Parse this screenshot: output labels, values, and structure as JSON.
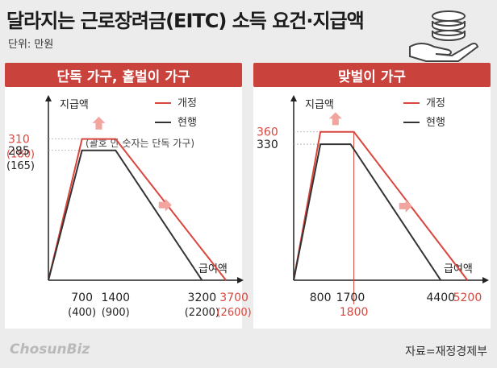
{
  "title": "달라지는 근로장려금(EITC) 소득 요건·지급액",
  "unit": "단위: 만원",
  "footer": {
    "logo": "ChosunBiz",
    "source": "자료=재정경제부"
  },
  "colors": {
    "revised": "#d9463e",
    "current": "#333333",
    "header_bg": "#c9423c",
    "arrow": "#f2a59f"
  },
  "chart_data": [
    {
      "type": "line",
      "title": "단독 가구, 홑벌이 가구",
      "ylabel": "지급액",
      "xlabel": "급여액",
      "note": "(괄호 안 숫자는 단독 가구)",
      "legend": [
        "개정",
        "현행"
      ],
      "legend_position": "top-right",
      "series": [
        {
          "name": "개정",
          "color": "#d9463e",
          "x": [
            0,
            700,
            1400,
            3700
          ],
          "y": [
            0,
            310,
            310,
            0
          ]
        },
        {
          "name": "현행",
          "color": "#333333",
          "x": [
            0,
            700,
            1400,
            3200
          ],
          "y": [
            0,
            285,
            285,
            0
          ]
        }
      ],
      "tick_labels_x": [
        {
          "text": "700",
          "sub": "(400)",
          "color": "#222222"
        },
        {
          "text": "1400",
          "sub": "(900)",
          "color": "#222222"
        },
        {
          "text": "3200",
          "sub": "(2200)",
          "color": "#222222"
        },
        {
          "text": "3700",
          "sub": "(2600)",
          "color": "#d9463e"
        }
      ],
      "tick_labels_y": [
        {
          "text": "310",
          "sub": "(180)",
          "color": "#d9463e"
        },
        {
          "text": "285",
          "sub": "(165)",
          "color": "#222222"
        }
      ]
    },
    {
      "type": "line",
      "title": "맞벌이 가구",
      "ylabel": "지급액",
      "xlabel": "급여액",
      "legend": [
        "개정",
        "현행"
      ],
      "legend_position": "top-right",
      "series": [
        {
          "name": "개정",
          "color": "#d9463e",
          "x": [
            0,
            800,
            1800,
            5200
          ],
          "y": [
            0,
            360,
            360,
            0
          ]
        },
        {
          "name": "현행",
          "color": "#333333",
          "x": [
            0,
            800,
            1700,
            4400
          ],
          "y": [
            0,
            330,
            330,
            0
          ]
        }
      ],
      "tick_labels_x": [
        {
          "text": "800",
          "color": "#222222"
        },
        {
          "text": "1700",
          "color": "#222222"
        },
        {
          "text": "1800",
          "color": "#d9463e"
        },
        {
          "text": "4400",
          "color": "#222222"
        },
        {
          "text": "5200",
          "color": "#d9463e"
        }
      ],
      "tick_labels_y": [
        {
          "text": "360",
          "color": "#d9463e"
        },
        {
          "text": "330",
          "color": "#222222"
        }
      ]
    }
  ]
}
